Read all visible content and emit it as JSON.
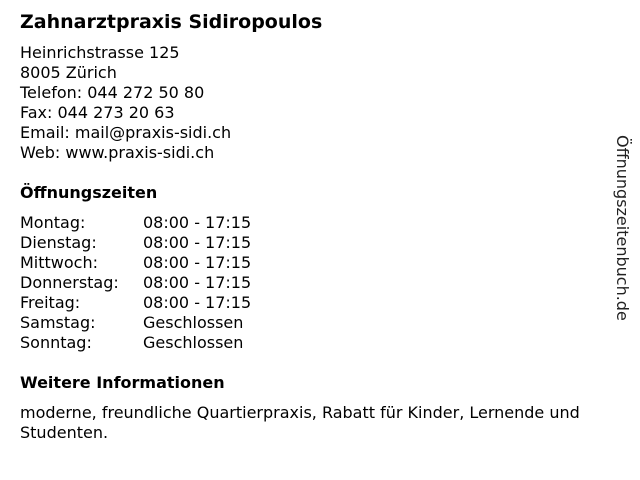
{
  "title": "Zahnarztpraxis Sidiropoulos",
  "address": [
    "Heinrichstrasse 125",
    "8005 Zürich",
    "Telefon: 044 272 50 80",
    "Fax: 044 273 20 63",
    "Email: mail@praxis-sidi.ch",
    "Web: www.praxis-sidi.ch"
  ],
  "hours_heading": "Öffnungszeiten",
  "hours": [
    {
      "day": "Montag:",
      "time": "08:00 - 17:15"
    },
    {
      "day": "Dienstag:",
      "time": "08:00 - 17:15"
    },
    {
      "day": "Mittwoch:",
      "time": "08:00 - 17:15"
    },
    {
      "day": "Donnerstag:",
      "time": "08:00 - 17:15"
    },
    {
      "day": "Freitag:",
      "time": "08:00 - 17:15"
    },
    {
      "day": "Samstag:",
      "time": "Geschlossen"
    },
    {
      "day": "Sonntag:",
      "time": "Geschlossen"
    }
  ],
  "info_heading": "Weitere Informationen",
  "info_text": "moderne, freundliche Quartierpraxis, Rabatt für Kinder, Lernende und Studenten.",
  "side_brand": "Öffnungszeitenbuch.de"
}
